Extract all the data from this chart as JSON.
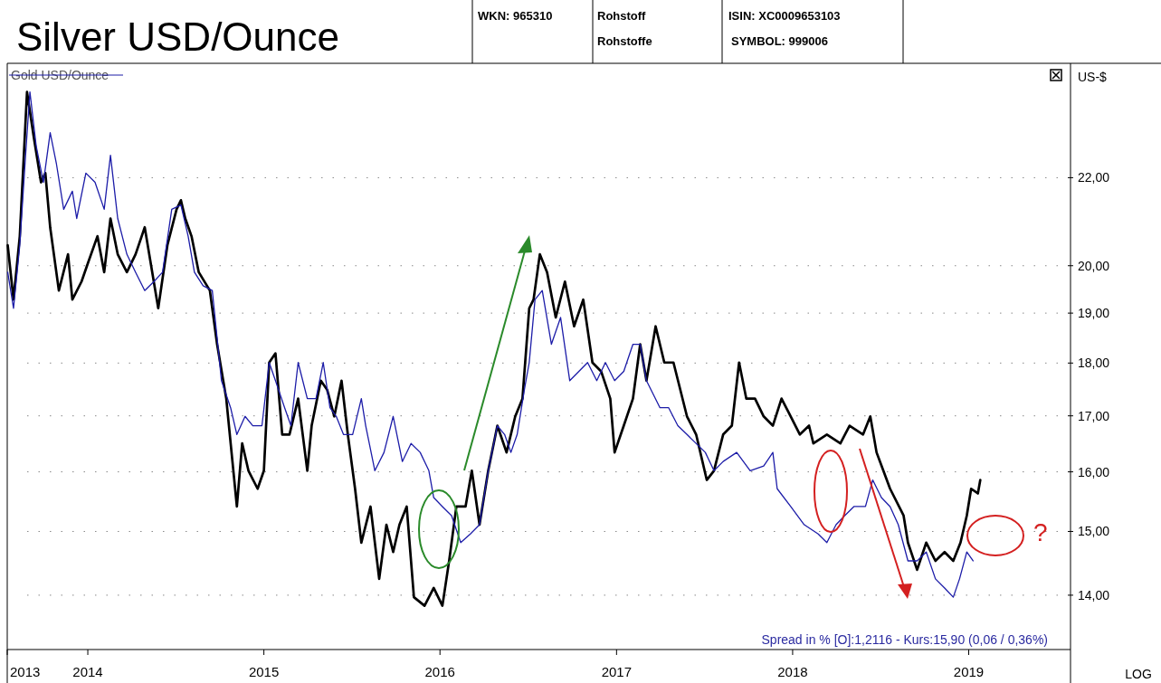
{
  "chart_data": {
    "type": "line",
    "title": "Silver USD/Ounce",
    "ylabel": "US-$",
    "annotations": [
      "?",
      "Spread in % [O]:1,2116 - Kurs:15,90 (0,06 / 0,36%)",
      "LOG",
      "WKN: 965310",
      "Rohstoff",
      "Rohstoffe",
      "ISIN: XC0009653103",
      "SYMBOL: 999006"
    ],
    "log": "y",
    "grid": "y",
    "legend": "top left",
    "line_style": "solid",
    "marker": "none",
    "xlim": [
      "2013-07-18",
      "2019-07-31"
    ],
    "xticks": [
      {
        "value": "2013-07-18",
        "label": "2013"
      },
      {
        "value": "2014-01-01",
        "label": "2014"
      },
      {
        "value": "2015-01-01",
        "label": "2015"
      },
      {
        "value": "2016-01-01",
        "label": "2016"
      },
      {
        "value": "2017-01-01",
        "label": "2017"
      },
      {
        "value": "2018-01-01",
        "label": "2018"
      },
      {
        "value": "2019-01-01",
        "label": "2019"
      }
    ],
    "ylim": [
      13.2,
      24.9
    ],
    "yticks": [
      {
        "value": 14,
        "label": "14,00"
      },
      {
        "value": 15,
        "label": "15,00"
      },
      {
        "value": 16,
        "label": "16,00"
      },
      {
        "value": 17,
        "label": "17,00"
      },
      {
        "value": 18,
        "label": "18,00"
      },
      {
        "value": 19,
        "label": "19,00"
      },
      {
        "value": 20,
        "label": "20,00"
      },
      {
        "value": 22,
        "label": "22,00"
      }
    ],
    "series": [
      {
        "color": "#000000",
        "x": [
          "2013-07-19",
          "2013-07-31",
          "2013-08-13",
          "2013-08-28",
          "2013-09-11",
          "2013-09-26",
          "2013-10-05",
          "2013-10-15",
          "2013-11-02",
          "2013-11-21",
          "2013-11-30",
          "2013-12-19",
          "2014-01-01",
          "2014-01-21",
          "2014-02-04",
          "2014-02-17",
          "2014-03-04",
          "2014-03-23",
          "2014-04-10",
          "2014-04-29",
          "2014-05-27",
          "2014-06-15",
          "2014-07-04",
          "2014-07-13",
          "2014-07-22",
          "2014-08-04",
          "2014-08-19",
          "2014-09-11",
          "2014-09-26",
          "2014-10-15",
          "2014-11-06",
          "2014-11-17",
          "2014-11-30",
          "2014-12-19",
          "2015-01-01",
          "2015-01-12",
          "2015-01-25",
          "2015-02-08",
          "2015-02-23",
          "2015-03-13",
          "2015-04-01",
          "2015-04-10",
          "2015-04-29",
          "2015-05-12",
          "2015-05-27",
          "2015-06-11",
          "2015-06-24",
          "2015-07-09",
          "2015-07-22",
          "2015-08-10",
          "2015-08-28",
          "2015-09-12",
          "2015-09-26",
          "2015-10-09",
          "2015-10-24",
          "2015-11-08",
          "2015-11-30",
          "2015-12-19",
          "2016-01-06",
          "2016-01-20",
          "2016-02-04",
          "2016-02-23",
          "2016-03-07",
          "2016-03-23",
          "2016-04-10",
          "2016-04-29",
          "2016-05-18",
          "2016-06-05",
          "2016-06-20",
          "2016-07-04",
          "2016-07-13",
          "2016-07-26",
          "2016-08-10",
          "2016-08-28",
          "2016-09-16",
          "2016-10-05",
          "2016-10-24",
          "2016-11-12",
          "2016-11-30",
          "2016-12-19",
          "2016-12-28",
          "2017-01-16",
          "2017-02-04",
          "2017-02-19",
          "2017-03-04",
          "2017-03-23",
          "2017-04-10",
          "2017-04-29",
          "2017-05-27",
          "2017-06-15",
          "2017-07-07",
          "2017-07-22",
          "2017-08-10",
          "2017-08-28",
          "2017-09-12",
          "2017-09-27",
          "2017-10-15",
          "2017-11-02",
          "2017-11-21",
          "2017-12-09",
          "2017-12-28",
          "2018-01-16",
          "2018-02-04",
          "2018-02-13",
          "2018-03-13",
          "2018-04-10",
          "2018-04-29",
          "2018-05-27",
          "2018-06-11",
          "2018-06-24",
          "2018-07-22",
          "2018-08-19",
          "2018-08-28",
          "2018-09-16",
          "2018-10-05",
          "2018-10-24",
          "2018-11-12",
          "2018-11-30",
          "2018-12-15",
          "2018-12-28",
          "2019-01-06",
          "2019-01-20",
          "2019-01-25"
        ],
        "values": [
          20.45,
          19.28,
          20.65,
          24.14,
          22.99,
          21.89,
          22.11,
          20.85,
          19.47,
          20.25,
          19.28,
          19.66,
          20.05,
          20.65,
          19.86,
          21.05,
          20.25,
          19.86,
          20.25,
          20.85,
          19.1,
          20.45,
          21.26,
          21.47,
          21.05,
          20.65,
          19.86,
          19.47,
          18.37,
          17.32,
          15.41,
          16.5,
          16.02,
          15.71,
          16.02,
          18.01,
          18.19,
          16.66,
          16.66,
          17.32,
          16.02,
          16.82,
          17.66,
          17.49,
          16.99,
          17.66,
          16.66,
          15.71,
          14.82,
          15.41,
          14.25,
          15.11,
          14.67,
          15.11,
          15.41,
          13.97,
          13.84,
          14.11,
          13.84,
          14.53,
          15.41,
          15.41,
          16.02,
          15.11,
          16.02,
          16.82,
          16.34,
          16.99,
          17.32,
          19.1,
          19.28,
          20.25,
          19.86,
          18.91,
          19.66,
          18.73,
          19.28,
          18.01,
          17.84,
          17.32,
          16.34,
          16.82,
          17.32,
          18.37,
          17.66,
          18.73,
          18.01,
          18.01,
          16.99,
          16.66,
          15.86,
          16.02,
          16.66,
          16.82,
          18.01,
          17.32,
          17.32,
          16.99,
          16.82,
          17.32,
          16.99,
          16.66,
          16.82,
          16.5,
          16.66,
          16.5,
          16.82,
          16.66,
          16.99,
          16.34,
          15.71,
          15.26,
          14.82,
          14.39,
          14.82,
          14.53,
          14.67,
          14.53,
          14.82,
          15.26,
          15.71,
          15.63,
          15.86
        ]
      },
      {
        "name": "Gold USD/Ounce",
        "color": "#1c1ca8",
        "x": [
          "2013-07-19",
          "2013-07-31",
          "2013-08-13",
          "2013-08-25",
          "2013-09-03",
          "2013-09-16",
          "2013-10-01",
          "2013-10-15",
          "2013-10-28",
          "2013-11-12",
          "2013-11-30",
          "2013-12-09",
          "2013-12-28",
          "2014-01-16",
          "2014-02-04",
          "2014-02-17",
          "2014-03-04",
          "2014-03-23",
          "2014-04-10",
          "2014-04-29",
          "2014-05-18",
          "2014-06-05",
          "2014-06-24",
          "2014-07-13",
          "2014-07-28",
          "2014-08-10",
          "2014-08-28",
          "2014-09-16",
          "2014-10-05",
          "2014-10-24",
          "2014-11-06",
          "2014-11-23",
          "2014-12-09",
          "2014-12-28",
          "2015-01-12",
          "2015-01-25",
          "2015-02-13",
          "2015-02-26",
          "2015-03-13",
          "2015-04-01",
          "2015-04-19",
          "2015-05-04",
          "2015-05-18",
          "2015-05-31",
          "2015-06-15",
          "2015-07-04",
          "2015-07-22",
          "2015-07-31",
          "2015-08-19",
          "2015-09-07",
          "2015-09-26",
          "2015-10-15",
          "2015-11-02",
          "2015-11-21",
          "2015-12-09",
          "2015-12-19",
          "2016-01-06",
          "2016-01-25",
          "2016-02-13",
          "2016-03-04",
          "2016-03-23",
          "2016-04-10",
          "2016-04-29",
          "2016-05-14",
          "2016-05-27",
          "2016-06-09",
          "2016-06-24",
          "2016-07-04",
          "2016-07-16",
          "2016-07-31",
          "2016-08-19",
          "2016-09-07",
          "2016-09-26",
          "2016-10-15",
          "2016-11-02",
          "2016-11-21",
          "2016-12-09",
          "2016-12-28",
          "2017-01-16",
          "2017-02-04",
          "2017-02-19",
          "2017-03-04",
          "2017-04-01",
          "2017-04-19",
          "2017-05-08",
          "2017-05-27",
          "2017-07-04",
          "2017-07-22",
          "2017-08-10",
          "2017-09-07",
          "2017-10-05",
          "2017-11-02",
          "2017-11-21",
          "2017-11-30",
          "2017-12-28",
          "2018-01-25",
          "2018-02-23",
          "2018-03-13",
          "2018-04-01",
          "2018-04-19",
          "2018-05-08",
          "2018-06-01",
          "2018-06-16",
          "2018-07-04",
          "2018-07-22",
          "2018-08-08",
          "2018-08-28",
          "2018-09-16",
          "2018-10-05",
          "2018-10-24",
          "2018-11-12",
          "2018-11-30",
          "2018-12-13",
          "2018-12-28",
          "2019-01-10"
        ],
        "values": [
          19.86,
          19.1,
          20.45,
          22.54,
          24.14,
          22.77,
          21.89,
          23.1,
          22.33,
          21.26,
          21.68,
          21.05,
          22.11,
          21.89,
          21.26,
          22.54,
          21.05,
          20.25,
          19.86,
          19.47,
          19.66,
          19.86,
          21.26,
          21.36,
          20.65,
          19.86,
          19.57,
          19.47,
          17.66,
          17.15,
          16.66,
          16.99,
          16.82,
          16.82,
          18.01,
          17.66,
          17.15,
          16.82,
          18.01,
          17.32,
          17.32,
          18.01,
          17.15,
          16.99,
          16.66,
          16.66,
          17.32,
          16.82,
          16.02,
          16.34,
          16.99,
          16.18,
          16.5,
          16.34,
          16.02,
          15.56,
          15.41,
          15.26,
          14.82,
          14.96,
          15.11,
          16.02,
          16.82,
          16.66,
          16.34,
          16.66,
          17.49,
          18.01,
          19.28,
          19.47,
          18.37,
          18.91,
          17.66,
          17.84,
          18.01,
          17.66,
          18.01,
          17.66,
          17.84,
          18.37,
          18.37,
          17.66,
          17.15,
          17.15,
          16.82,
          16.66,
          16.34,
          16.02,
          16.18,
          16.34,
          16.02,
          16.1,
          16.34,
          15.71,
          15.41,
          15.11,
          14.96,
          14.82,
          15.11,
          15.26,
          15.41,
          15.41,
          15.86,
          15.56,
          15.41,
          15.11,
          14.53,
          14.53,
          14.67,
          14.25,
          14.11,
          13.97,
          14.25,
          14.67,
          14.53
        ]
      }
    ]
  }
}
